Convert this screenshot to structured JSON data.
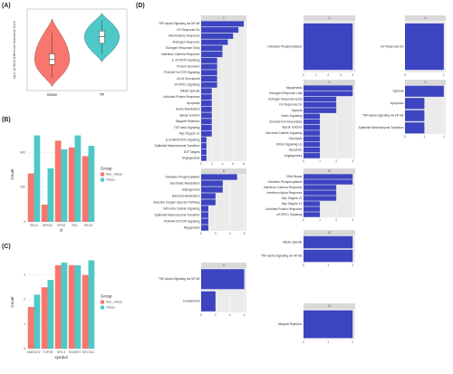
{
  "chart_data": [
    {
      "type": "violin",
      "panel": "(A)",
      "y_label": "log10 ALINCA Differential Modularity Score",
      "categories": [
        "Gene",
        "TF"
      ],
      "colors": [
        "#f8766d",
        "#4fc8c8"
      ],
      "stats": [
        {
          "min": 0.5,
          "q1": 3.2,
          "median": 3.8,
          "q3": 4.5,
          "max": 8.8
        },
        {
          "min": 3.5,
          "q1": 5.8,
          "median": 6.6,
          "q3": 7.3,
          "max": 9.5
        }
      ],
      "ylim": [
        0,
        10
      ]
    },
    {
      "type": "grouped-bar",
      "panel": "(B)",
      "x_label": "tf",
      "y_label": "Count",
      "legend_title": "Group",
      "categories": [
        "RELA",
        "NFKB1",
        "RFX5",
        "REL",
        "RELB"
      ],
      "series": [
        {
          "name": "Non_Obese",
          "color": "#f8766d",
          "values": [
            280,
            100,
            470,
            430,
            380
          ]
        },
        {
          "name": "Obese",
          "color": "#4fc8c8",
          "values": [
            500,
            310,
            420,
            500,
            440
          ]
        }
      ],
      "ylim": [
        0,
        550
      ],
      "yticks": [
        0,
        200,
        400
      ],
      "grid": true
    },
    {
      "type": "grouped-bar",
      "panel": "(C)",
      "x_label": "symbol",
      "y_label": "Count",
      "legend_title": "Group",
      "categories": [
        "MARCH2",
        "TOP2B",
        "NFIL3",
        "RASSF4",
        "SEC31A"
      ],
      "series": [
        {
          "name": "Non_Obese",
          "color": "#f8766d",
          "values": [
            1.7,
            2.5,
            3.4,
            3.4,
            3.0
          ]
        },
        {
          "name": "Obese",
          "color": "#4fc8c8",
          "values": [
            2.2,
            2.8,
            3.5,
            3.4,
            3.6
          ]
        }
      ],
      "ylim": [
        0,
        3.8
      ],
      "yticks": [
        0,
        1,
        2,
        3
      ],
      "grid": true
    },
    {
      "type": "facet-bar",
      "panel": "(D)",
      "color": "#3c44c0",
      "facets": [
        {
          "title": "1",
          "terms": [
            "TNF-alpha Signaling via NF-kB",
            "UV Response Dn",
            "Inflammatory Response",
            "Androgen Response",
            "Estrogen Response Early",
            "Interferon Gamma Response",
            "IL-2/STAT5 Signaling",
            "Protein Secretion",
            "PI3K/AKT/mTOR Signaling",
            "G2-M Checkpoint",
            "mTORC1 Signaling",
            "Mitotic Spindle",
            "Unfolded Protein Response",
            "Apoptosis",
            "Heme Metabolism",
            "Apical Junction",
            "Allograft Rejection",
            "TGF-beta Signaling",
            "Myc Targets V1",
            "IL-6/JAK/STAT3 Signaling",
            "Epithelial Mesenchymal Transition",
            "E2F Targets",
            "Angiogenesis"
          ],
          "values": [
            8,
            7,
            6,
            5,
            4,
            4,
            3,
            3,
            3,
            3,
            3,
            2,
            2,
            2,
            2,
            2,
            2,
            2,
            2,
            1,
            1,
            1,
            1
          ],
          "xlim": [
            0,
            8.5
          ],
          "xticks": [
            0,
            2,
            4,
            6,
            8
          ]
        },
        {
          "title": "2",
          "terms": [
            "Oxidative Phosphorylation"
          ],
          "values": [
            4
          ],
          "xlim": [
            0,
            4.2
          ],
          "xticks": [
            0,
            1,
            2,
            3,
            4
          ]
        },
        {
          "title": "4",
          "terms": [
            "UV Response Dn"
          ],
          "values": [
            1
          ],
          "xlim": [
            0,
            1.05
          ],
          "xticks": [
            0,
            1
          ]
        },
        {
          "title": "3",
          "terms": [
            "Myogenesis",
            "Estrogen Response Late",
            "Estrogen Response Early",
            "UV Response Dn",
            "Hypoxia",
            "Notch Signaling",
            "Cholesterol Homeostasis",
            "Apical Junction",
            "Wnt-beta Catenin Signaling",
            "Glycolysis",
            "KRAS Signaling Up",
            "Apoptosis",
            "Angiogenesis"
          ],
          "values": [
            3,
            3,
            2,
            2,
            2,
            1,
            1,
            1,
            1,
            1,
            1,
            1,
            1
          ],
          "xlim": [
            0,
            3.15
          ],
          "xticks": [
            0,
            1,
            2,
            3
          ]
        },
        {
          "title": "5",
          "terms": [
            "Hypoxia",
            "Apoptosis",
            "TNF-alpha Signaling via NF-kB",
            "Epithelial Mesenchymal Transition"
          ],
          "values": [
            2,
            1,
            1,
            1
          ],
          "xlim": [
            0,
            2.1
          ],
          "xticks": [
            0,
            1,
            2
          ]
        },
        {
          "title": "8",
          "terms": [
            "Oxidative Phosphorylation",
            "Xenobiotic Metabolism",
            "Adipogenesis",
            "Bile Acid Metabolism",
            "Reactive Oxygen Species Pathway",
            "Wnt-beta Catenin Signaling",
            "Epithelial Mesenchymal Transition",
            "PI3K/AKT/mTOR Signaling",
            "Myogenesis"
          ],
          "values": [
            5,
            3,
            3,
            2,
            2,
            1,
            1,
            1,
            1
          ],
          "xlim": [
            0,
            6.3
          ],
          "xticks": [
            0,
            2,
            4,
            6
          ]
        },
        {
          "title": "10",
          "terms": [
            "DNA Repair",
            "Oxidative Phosphorylation",
            "Interferon Gamma Response",
            "Interferon Alpha Response",
            "Myc Targets V2",
            "Myc Targets V1",
            "Unfolded Protein Response",
            "mTORC1 Signaling"
          ],
          "values": [
            3,
            3,
            2,
            2,
            2,
            1,
            1,
            1
          ],
          "xlim": [
            0,
            3.15
          ],
          "xticks": [
            0,
            1,
            2,
            3
          ]
        },
        {
          "title": "12",
          "terms": [
            "Mitotic Spindle",
            "TNF-alpha Signaling via NF-kB"
          ],
          "values": [
            2,
            2
          ],
          "xlim": [
            0,
            2.1
          ],
          "xticks": [
            0,
            1,
            2
          ]
        },
        {
          "title": "9",
          "terms": [
            "TNF-alpha Signaling via NF-kB",
            "Complement"
          ],
          "values": [
            6,
            2
          ],
          "xlim": [
            0,
            6.3
          ],
          "xticks": [
            0,
            2,
            4,
            6
          ]
        },
        {
          "title": "14",
          "terms": [
            "Allograft Rejection"
          ],
          "values": [
            2
          ],
          "xlim": [
            0,
            2.1
          ],
          "xticks": [
            0,
            1,
            2
          ]
        }
      ]
    }
  ]
}
